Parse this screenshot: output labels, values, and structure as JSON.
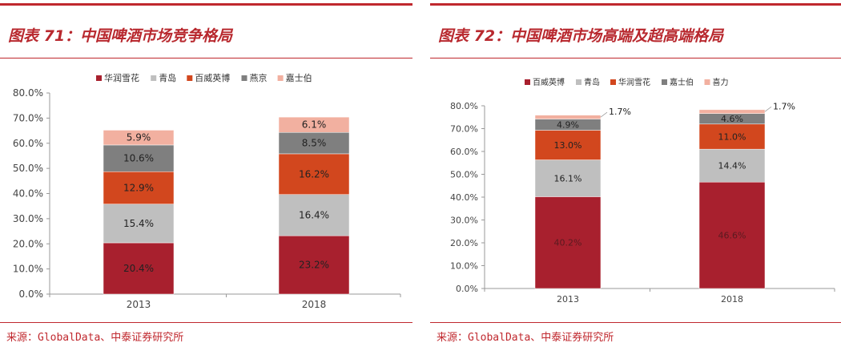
{
  "panels": [
    {
      "title": "图表 71：中国啤酒市场竞争格局",
      "source": "来源：GlobalData、中泰证券研究所"
    },
    {
      "title": "图表 72：中国啤酒市场高端及超高端格局",
      "source": "来源：GlobalData、中泰证券研究所"
    }
  ],
  "chart_data": [
    {
      "type": "bar",
      "stacked": true,
      "title": "",
      "categories": [
        "2013",
        "2018"
      ],
      "ylim": [
        0,
        80
      ],
      "yticks": [
        "0.0%",
        "10.0%",
        "20.0%",
        "30.0%",
        "40.0%",
        "50.0%",
        "60.0%",
        "70.0%",
        "80.0%"
      ],
      "legend": "top",
      "series": [
        {
          "name": "华润雪花",
          "values": [
            20.4,
            23.2
          ],
          "labels": [
            "20.4%",
            "23.2%"
          ],
          "color": "#A8202E"
        },
        {
          "name": "青岛",
          "values": [
            15.4,
            16.4
          ],
          "labels": [
            "15.4%",
            "16.4%"
          ],
          "color": "#BFBFBF"
        },
        {
          "name": "百威英博",
          "values": [
            12.9,
            16.2
          ],
          "labels": [
            "12.9%",
            "16.2%"
          ],
          "color": "#D2471E"
        },
        {
          "name": "燕京",
          "values": [
            10.6,
            8.5
          ],
          "labels": [
            "10.6%",
            "8.5%"
          ],
          "color": "#7F7F7F"
        },
        {
          "name": "嘉士伯",
          "values": [
            5.9,
            6.1
          ],
          "labels": [
            "5.9%",
            "6.1%"
          ],
          "color": "#F2B0A0"
        }
      ]
    },
    {
      "type": "bar",
      "stacked": true,
      "title": "",
      "categories": [
        "2013",
        "2018"
      ],
      "ylim": [
        0,
        80
      ],
      "yticks": [
        "0.0%",
        "10.0%",
        "20.0%",
        "30.0%",
        "40.0%",
        "50.0%",
        "60.0%",
        "70.0%",
        "80.0%"
      ],
      "legend": "top",
      "series": [
        {
          "name": "百威英博",
          "values": [
            40.2,
            46.6
          ],
          "labels": [
            "40.2%",
            "46.6%"
          ],
          "color": "#A8202E"
        },
        {
          "name": "青岛",
          "values": [
            16.1,
            14.4
          ],
          "labels": [
            "16.1%",
            "14.4%"
          ],
          "color": "#BFBFBF"
        },
        {
          "name": "华润雪花",
          "values": [
            13.0,
            11.0
          ],
          "labels": [
            "13.0%",
            "11.0%"
          ],
          "color": "#D2471E"
        },
        {
          "name": "嘉士伯",
          "values": [
            4.9,
            4.6
          ],
          "labels": [
            "4.9%",
            "4.6%"
          ],
          "color": "#7F7F7F"
        },
        {
          "name": "喜力",
          "values": [
            1.7,
            1.7
          ],
          "labels": [
            "1.7%",
            "1.7%"
          ],
          "color": "#F2B0A0"
        }
      ]
    }
  ]
}
